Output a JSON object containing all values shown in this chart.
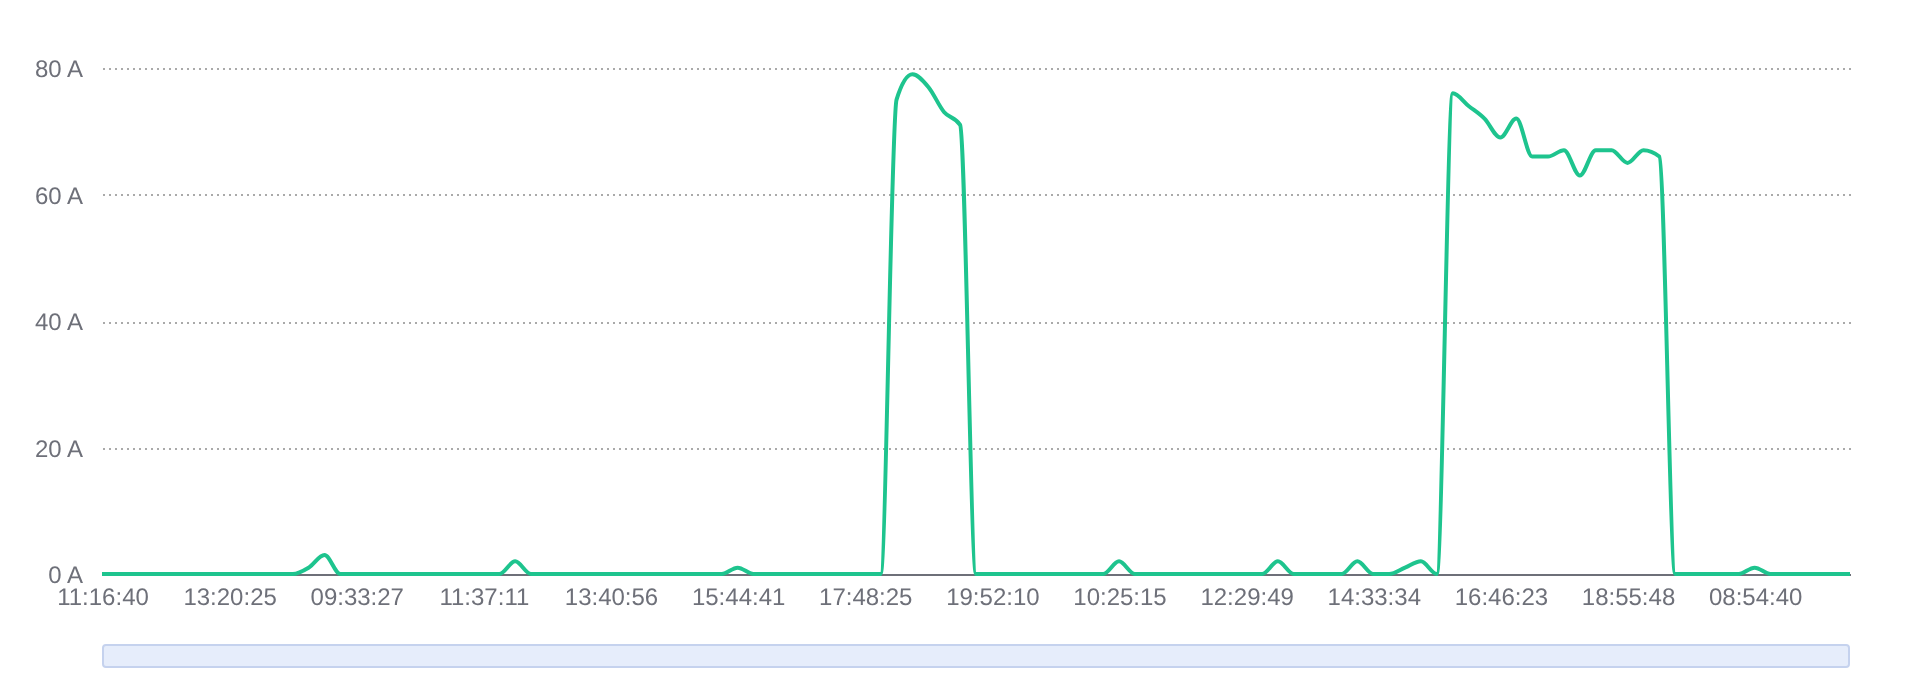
{
  "chart_data": {
    "type": "line",
    "categories": [
      "11:16:40",
      null,
      null,
      null,
      null,
      null,
      null,
      null,
      "13:20:25",
      null,
      null,
      null,
      null,
      null,
      null,
      null,
      "09:33:27",
      null,
      null,
      null,
      null,
      null,
      null,
      null,
      "11:37:11",
      null,
      null,
      null,
      null,
      null,
      null,
      null,
      "13:40:56",
      null,
      null,
      null,
      null,
      null,
      null,
      null,
      "15:44:41",
      null,
      null,
      null,
      null,
      null,
      null,
      null,
      "17:48:25",
      null,
      null,
      null,
      null,
      null,
      null,
      null,
      "19:52:10",
      null,
      null,
      null,
      null,
      null,
      null,
      null,
      "10:25:15",
      null,
      null,
      null,
      null,
      null,
      null,
      null,
      "12:29:49",
      null,
      null,
      null,
      null,
      null,
      null,
      null,
      "14:33:34",
      null,
      null,
      null,
      null,
      null,
      null,
      null,
      "16:46:23",
      null,
      null,
      null,
      null,
      null,
      null,
      null,
      "18:55:48",
      null,
      null,
      null,
      null,
      null,
      null,
      null,
      "08:54:40",
      null,
      null,
      null,
      null,
      null,
      null
    ],
    "series": [
      {
        "color": "#1ec48e",
        "values": [
          0,
          0,
          0,
          0,
          0,
          0,
          0,
          0,
          0,
          0,
          0,
          0,
          0,
          1,
          3,
          0,
          0,
          0,
          0,
          0,
          0,
          0,
          0,
          0,
          0,
          0,
          2,
          0,
          0,
          0,
          0,
          0,
          0,
          0,
          0,
          0,
          0,
          0,
          0,
          0,
          1,
          0,
          0,
          0,
          0,
          0,
          0,
          0,
          0,
          0,
          75,
          79,
          77,
          73,
          71,
          0,
          0,
          0,
          0,
          0,
          0,
          0,
          0,
          0,
          2,
          0,
          0,
          0,
          0,
          0,
          0,
          0,
          0,
          0,
          2,
          0,
          0,
          0,
          0,
          2,
          0,
          0,
          1,
          2,
          0,
          76,
          74,
          72,
          69,
          72,
          66,
          66,
          67,
          63,
          67,
          67,
          65,
          67,
          66,
          0,
          0,
          0,
          0,
          0,
          1,
          0,
          0,
          0,
          0,
          0,
          0
        ]
      }
    ],
    "ylim": [
      0,
      80
    ],
    "yticks": [
      {
        "value": 0,
        "label": "0 A"
      },
      {
        "value": 20,
        "label": "20 A"
      },
      {
        "value": 40,
        "label": "40 A"
      },
      {
        "value": 60,
        "label": "60 A"
      },
      {
        "value": 80,
        "label": "80 A"
      }
    ],
    "grid": "y"
  }
}
